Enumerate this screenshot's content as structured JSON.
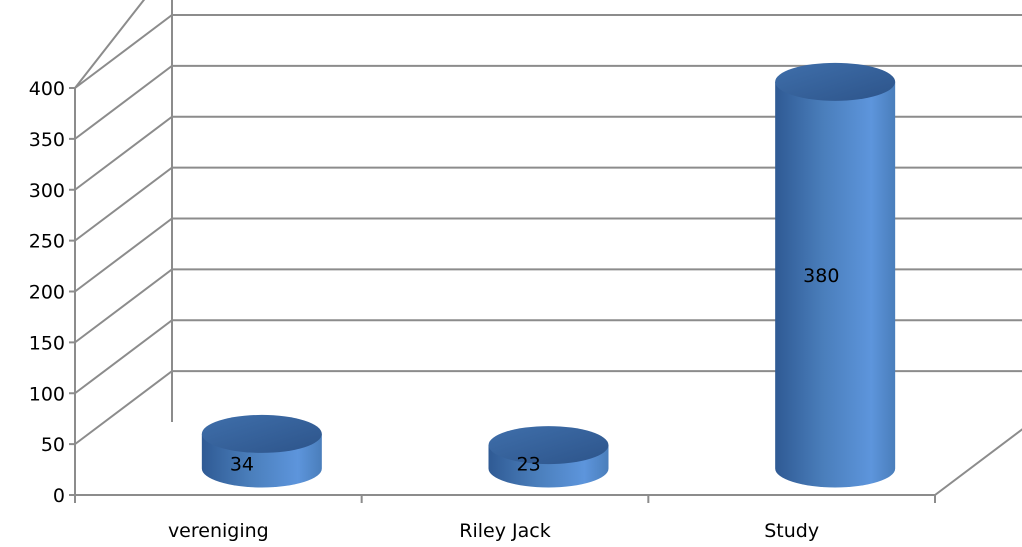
{
  "chart_data": {
    "type": "bar",
    "style": "3d-cylinder",
    "categories": [
      "vereniging",
      "Riley Jack",
      "Study"
    ],
    "values": [
      34,
      23,
      380
    ],
    "data_labels": [
      "34",
      "23",
      "380"
    ],
    "title": "",
    "xlabel": "",
    "ylabel": "",
    "ylim": [
      0,
      400
    ],
    "y_ticks": [
      "0",
      "50",
      "100",
      "150",
      "200",
      "250",
      "300",
      "350",
      "400"
    ],
    "grid": true,
    "legend": "none",
    "colors": {
      "bar": "#4a7ebb",
      "bar_light": "#5d95dc",
      "bar_dark": "#2f5a94",
      "gridline": "#8c8c8c",
      "axis": "#8c8c8c",
      "text": "#000000"
    }
  }
}
